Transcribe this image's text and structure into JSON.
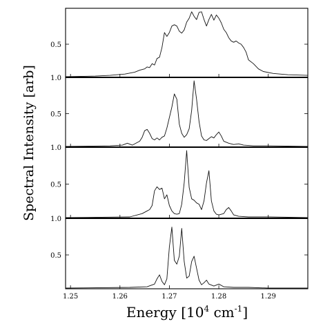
{
  "chart_data": {
    "type": "line",
    "xlabel": "Energy [10",
    "xlabel_sup": "4",
    "xlabel_unit": " cm",
    "xlabel_unit_sup": "-1",
    "xlabel_close": "]",
    "ylabel": "Spectral Intensity [arb]",
    "xlim": [
      1.249,
      1.298
    ],
    "x_ticks": [
      "1.25",
      "1.26",
      "1.27",
      "1.28",
      "1.29"
    ],
    "x_tick_values": [
      1.25,
      1.26,
      1.27,
      1.28,
      1.29
    ],
    "grid": false,
    "legend": "none",
    "panels": [
      {
        "ylim": [
          0,
          1.0
        ],
        "y_ticks": [
          "0.5"
        ],
        "y_tick_values": [
          0.5
        ],
        "series": [
          {
            "x": [
              1.249,
              1.255,
              1.258,
              1.261,
              1.263,
              1.264,
              1.265,
              1.2655,
              1.266,
              1.2665,
              1.267,
              1.2675,
              1.268,
              1.2685,
              1.269,
              1.2695,
              1.27,
              1.2705,
              1.271,
              1.2715,
              1.272,
              1.2725,
              1.273,
              1.2735,
              1.274,
              1.2745,
              1.275,
              1.2755,
              1.276,
              1.2765,
              1.277,
              1.2775,
              1.278,
              1.2785,
              1.279,
              1.2795,
              1.28,
              1.2805,
              1.281,
              1.2815,
              1.282,
              1.2825,
              1.283,
              1.2835,
              1.284,
              1.2845,
              1.285,
              1.2855,
              1.286,
              1.287,
              1.288,
              1.289,
              1.291,
              1.294,
              1.298
            ],
            "y": [
              0.0,
              0.01,
              0.02,
              0.04,
              0.07,
              0.1,
              0.12,
              0.15,
              0.14,
              0.2,
              0.18,
              0.28,
              0.3,
              0.45,
              0.68,
              0.62,
              0.68,
              0.78,
              0.8,
              0.78,
              0.7,
              0.67,
              0.72,
              0.84,
              0.9,
              1.0,
              0.93,
              0.88,
              0.99,
              1.0,
              0.88,
              0.78,
              0.88,
              0.96,
              0.87,
              0.95,
              0.9,
              0.83,
              0.73,
              0.68,
              0.6,
              0.55,
              0.53,
              0.55,
              0.52,
              0.5,
              0.45,
              0.38,
              0.26,
              0.2,
              0.12,
              0.08,
              0.05,
              0.03,
              0.02
            ]
          }
        ]
      },
      {
        "ylim": [
          0,
          1.0
        ],
        "y_top_label": "1.0",
        "y_ticks": [
          "0.5"
        ],
        "y_tick_values": [
          0.5
        ],
        "series": [
          {
            "x": [
              1.249,
              1.258,
              1.2605,
              1.2615,
              1.2625,
              1.264,
              1.2645,
              1.265,
              1.2655,
              1.266,
              1.2665,
              1.267,
              1.2675,
              1.268,
              1.2685,
              1.269,
              1.2695,
              1.2705,
              1.271,
              1.2715,
              1.272,
              1.2725,
              1.273,
              1.2735,
              1.274,
              1.2745,
              1.275,
              1.2755,
              1.276,
              1.2765,
              1.277,
              1.2775,
              1.278,
              1.2785,
              1.279,
              1.2795,
              1.28,
              1.2805,
              1.281,
              1.282,
              1.283,
              1.284,
              1.285,
              1.287,
              1.29,
              1.298
            ],
            "y": [
              0.0,
              0.01,
              0.02,
              0.05,
              0.02,
              0.08,
              0.14,
              0.24,
              0.26,
              0.2,
              0.12,
              0.1,
              0.13,
              0.1,
              0.14,
              0.16,
              0.28,
              0.6,
              0.8,
              0.72,
              0.34,
              0.2,
              0.14,
              0.18,
              0.27,
              0.55,
              1.0,
              0.72,
              0.38,
              0.16,
              0.1,
              0.09,
              0.12,
              0.15,
              0.13,
              0.18,
              0.22,
              0.16,
              0.08,
              0.05,
              0.03,
              0.04,
              0.02,
              0.01,
              0.01,
              0.0
            ]
          }
        ]
      },
      {
        "ylim": [
          0,
          1.0
        ],
        "y_top_label": "1.0",
        "y_ticks": [
          "0.5"
        ],
        "y_tick_values": [
          0.5
        ],
        "series": [
          {
            "x": [
              1.249,
              1.262,
              1.2645,
              1.2655,
              1.266,
              1.2665,
              1.267,
              1.2675,
              1.268,
              1.2685,
              1.269,
              1.2695,
              1.27,
              1.2705,
              1.271,
              1.2715,
              1.272,
              1.2725,
              1.273,
              1.2735,
              1.274,
              1.2745,
              1.275,
              1.2755,
              1.276,
              1.2765,
              1.277,
              1.2775,
              1.278,
              1.2785,
              1.279,
              1.2795,
              1.28,
              1.281,
              1.2815,
              1.282,
              1.2825,
              1.283,
              1.284,
              1.286,
              1.29,
              1.298
            ],
            "y": [
              0.0,
              0.01,
              0.06,
              0.1,
              0.12,
              0.18,
              0.4,
              0.46,
              0.42,
              0.44,
              0.28,
              0.34,
              0.18,
              0.1,
              0.06,
              0.05,
              0.06,
              0.2,
              0.52,
              1.0,
              0.45,
              0.28,
              0.26,
              0.22,
              0.2,
              0.12,
              0.25,
              0.52,
              0.7,
              0.25,
              0.1,
              0.05,
              0.04,
              0.06,
              0.12,
              0.15,
              0.1,
              0.04,
              0.02,
              0.01,
              0.01,
              0.0
            ]
          }
        ]
      },
      {
        "ylim": [
          0,
          1.0
        ],
        "y_top_label": "1.0",
        "y_ticks": [
          "0.5"
        ],
        "y_tick_values": [
          0.5
        ],
        "series": [
          {
            "x": [
              1.249,
              1.262,
              1.2655,
              1.267,
              1.2675,
              1.268,
              1.2685,
              1.269,
              1.2695,
              1.27,
              1.2705,
              1.271,
              1.2715,
              1.272,
              1.2725,
              1.273,
              1.2735,
              1.274,
              1.2745,
              1.275,
              1.2755,
              1.276,
              1.2765,
              1.277,
              1.2775,
              1.278,
              1.279,
              1.28,
              1.281,
              1.283,
              1.286,
              1.29,
              1.298
            ],
            "y": [
              0.0,
              0.01,
              0.02,
              0.06,
              0.14,
              0.2,
              0.1,
              0.05,
              0.14,
              0.62,
              0.92,
              0.42,
              0.36,
              0.48,
              0.9,
              0.4,
              0.15,
              0.18,
              0.4,
              0.48,
              0.3,
              0.12,
              0.05,
              0.08,
              0.12,
              0.06,
              0.03,
              0.06,
              0.02,
              0.01,
              0.01,
              0.0,
              0.0
            ]
          }
        ]
      }
    ]
  }
}
